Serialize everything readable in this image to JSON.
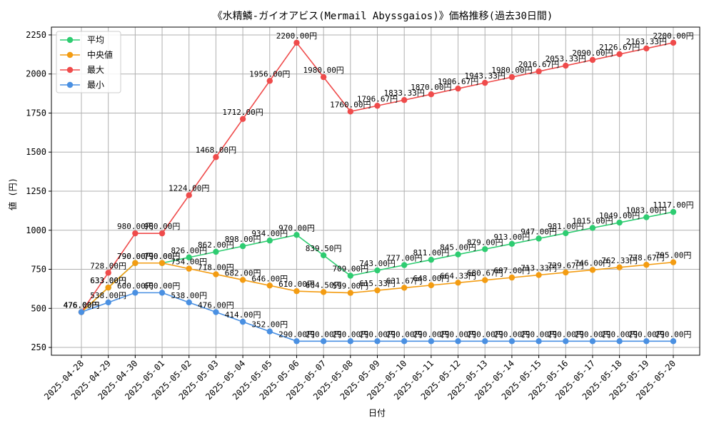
{
  "chart_data": {
    "type": "line",
    "title": "《水精鱗-ガイオアビス(Mermail Abyssgaios)》価格推移(過去30日間)",
    "xlabel": "日付",
    "ylabel": "値 (円)",
    "ylim": [
      200,
      2300
    ],
    "yticks": [
      250,
      500,
      750,
      1000,
      1250,
      1500,
      1750,
      2000,
      2250
    ],
    "grid": true,
    "legend_position": "top-left",
    "categories": [
      "2025-04-28",
      "2025-04-29",
      "2025-04-30",
      "2025-05-01",
      "2025-05-02",
      "2025-05-03",
      "2025-05-04",
      "2025-05-05",
      "2025-05-06",
      "2025-05-07",
      "2025-05-08",
      "2025-05-09",
      "2025-05-10",
      "2025-05-11",
      "2025-05-12",
      "2025-05-13",
      "2025-05-14",
      "2025-05-15",
      "2025-05-16",
      "2025-05-17",
      "2025-05-18",
      "2025-05-19",
      "2025-05-20"
    ],
    "series": [
      {
        "name": "平均",
        "color": "#2ecc71",
        "values": [
          476,
          633,
          790,
          790,
          826,
          862,
          898,
          934,
          970,
          839.5,
          709,
          743,
          777,
          811,
          845,
          879,
          913,
          947,
          981,
          1015,
          1049,
          1083,
          1117
        ],
        "labels": [
          "476.00円",
          "633.00円",
          "790.00円",
          "790.00円",
          "826.00円",
          "862.00円",
          "898.00円",
          "934.00円",
          "970.00円",
          "839.50円",
          "709.00円",
          "743.00円",
          "777.00円",
          "811.00円",
          "845.00円",
          "879.00円",
          "913.00円",
          "947.00円",
          "981.00円",
          "1015.00円",
          "1049.00円",
          "1083.00円",
          "1117.00円"
        ]
      },
      {
        "name": "中央値",
        "color": "#f39c12",
        "values": [
          476,
          633,
          790,
          790,
          754,
          718,
          682,
          646,
          610,
          604.5,
          599,
          615.33,
          631.67,
          648,
          664.33,
          680.67,
          697,
          713.33,
          729.67,
          746,
          762.33,
          778.67,
          795
        ],
        "labels": [
          "476.00円",
          "633.00円",
          "790.00円",
          "790.00円",
          "754.00円",
          "718.00円",
          "682.00円",
          "646.00円",
          "610.00円",
          "604.50円",
          "599.00円",
          "615.33円",
          "631.67円",
          "648.00円",
          "664.33円",
          "680.67円",
          "697.00円",
          "713.33円",
          "729.67円",
          "746.00円",
          "762.33円",
          "778.67円",
          "795.00円"
        ]
      },
      {
        "name": "最大",
        "color": "#ef4b4b",
        "values": [
          476,
          728,
          980,
          980,
          1224,
          1468,
          1712,
          1956,
          2200,
          1980,
          1760,
          1796.67,
          1833.33,
          1870,
          1906.67,
          1943.33,
          1980,
          2016.67,
          2053.33,
          2090,
          2126.67,
          2163.33,
          2200
        ],
        "labels": [
          "476.00円",
          "728.00円",
          "980.00円",
          "980.00円",
          "1224.00円",
          "1468.00円",
          "1712.00円",
          "1956.00円",
          "2200.00円",
          "1980.00円",
          "1760.00円",
          "1796.67円",
          "1833.33円",
          "1870.00円",
          "1906.67円",
          "1943.33円",
          "1980.00円",
          "2016.67円",
          "2053.33円",
          "2090.00円",
          "2126.67円",
          "2163.33円",
          "2200.00円"
        ]
      },
      {
        "name": "最小",
        "color": "#4a90e2",
        "values": [
          476,
          538,
          600,
          600,
          538,
          476,
          414,
          352,
          290,
          290,
          290,
          290,
          290,
          290,
          290,
          290,
          290,
          290,
          290,
          290,
          290,
          290,
          290
        ],
        "labels": [
          "476.00円",
          "538.00円",
          "600.00円",
          "600.00円",
          "538.00円",
          "476.00円",
          "414.00円",
          "352.00円",
          "290.00円",
          "290.00円",
          "290.00円",
          "290.00円",
          "290.00円",
          "290.00円",
          "290.00円",
          "290.00円",
          "290.00円",
          "290.00円",
          "290.00円",
          "290.00円",
          "290.00円",
          "290.00円",
          "290.00円"
        ]
      }
    ]
  }
}
